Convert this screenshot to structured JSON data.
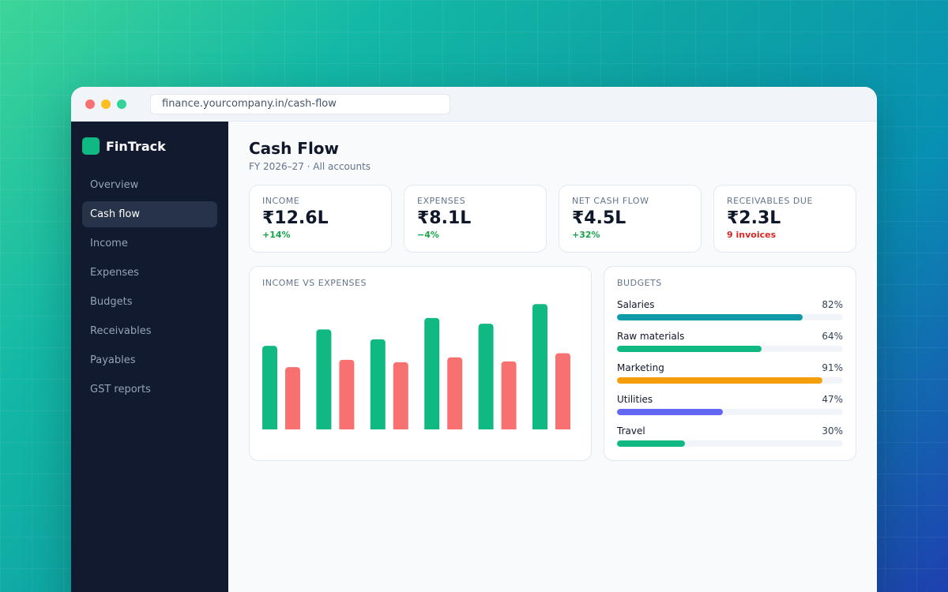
{
  "browser": {
    "url": "finance.yourcompany.in/cash-flow"
  },
  "sidebar": {
    "brand": "FinTrack",
    "items": [
      {
        "label": "Overview",
        "active": false
      },
      {
        "label": "Cash flow",
        "active": true
      },
      {
        "label": "Income",
        "active": false
      },
      {
        "label": "Expenses",
        "active": false
      },
      {
        "label": "Budgets",
        "active": false
      },
      {
        "label": "Receivables",
        "active": false
      },
      {
        "label": "Payables",
        "active": false
      },
      {
        "label": "GST reports",
        "active": false
      }
    ]
  },
  "header": {
    "title": "Cash Flow",
    "subtitle": "FY 2026–27 · All accounts"
  },
  "kpis": [
    {
      "label": "INCOME",
      "value": "₹12.6L",
      "change": "+14%",
      "change_color": "#16a34a"
    },
    {
      "label": "EXPENSES",
      "value": "₹8.1L",
      "change": "−4%",
      "change_color": "#16a34a"
    },
    {
      "label": "NET CASH FLOW",
      "value": "₹4.5L",
      "change": "+32%",
      "change_color": "#16a34a"
    },
    {
      "label": "RECEIVABLES DUE",
      "value": "₹2.3L",
      "change": "9 invoices",
      "change_color": "#dc2626"
    }
  ],
  "chart_card": {
    "title": "INCOME VS EXPENSES"
  },
  "chart_data": {
    "type": "bar",
    "categories": [
      "",
      "",
      "",
      "",
      "",
      ""
    ],
    "series": [
      {
        "values": [
          102,
          122,
          110,
          136,
          129,
          153
        ],
        "color": "#10b981"
      },
      {
        "values": [
          76,
          85,
          82,
          88,
          83,
          93
        ],
        "color": "#f87171"
      }
    ],
    "ylim": [
      0,
      160
    ],
    "grid": false
  },
  "budgets": {
    "title": "BUDGETS",
    "items": [
      {
        "label": "Salaries",
        "pct_label": "82%",
        "value": 82,
        "color": "#0e9aa7"
      },
      {
        "label": "Raw materials",
        "pct_label": "64%",
        "value": 64,
        "color": "#10b981"
      },
      {
        "label": "Marketing",
        "pct_label": "91%",
        "value": 91,
        "color": "#f59e0b"
      },
      {
        "label": "Utilities",
        "pct_label": "47%",
        "value": 47,
        "color": "#6366f1"
      },
      {
        "label": "Travel",
        "pct_label": "30%",
        "value": 30,
        "color": "#10b981"
      }
    ]
  }
}
